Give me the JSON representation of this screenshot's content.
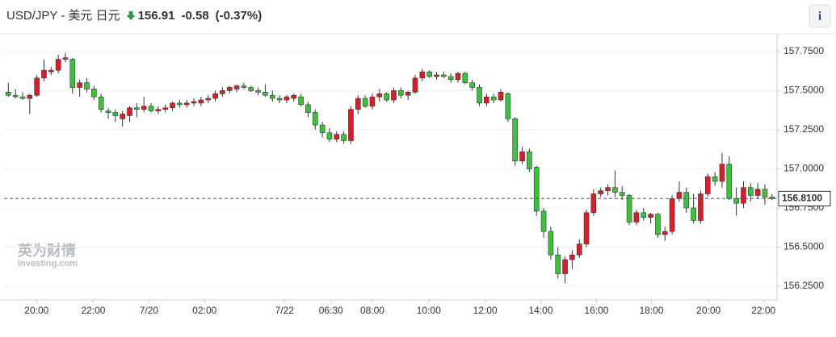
{
  "chart_data": {
    "type": "candlestick",
    "title": "USD/JPY - 美元 日元",
    "price": 156.91,
    "change": -0.58,
    "change_percent": {
      "value": -0.37,
      "label": "(-0.37%)"
    },
    "info_button": "i",
    "watermark": [
      "英为财情",
      "Investing.com"
    ],
    "up_color": "#d91e2a",
    "down_color": "#3cc13c",
    "ylim": [
      156.1625,
      157.8625
    ],
    "yticks": [
      {
        "value": 156.25,
        "label": "156.2500"
      },
      {
        "value": 156.5,
        "label": "156.5000"
      },
      {
        "value": 156.75,
        "label": "156.7500"
      },
      {
        "value": 157,
        "label": "157.0000"
      },
      {
        "value": 157.25,
        "label": "157.2500"
      },
      {
        "value": 157.5,
        "label": "157.5000"
      },
      {
        "value": 157.75,
        "label": "157.7500"
      }
    ],
    "xlim": [
      -0.6,
      107.7
    ],
    "xticks": [
      {
        "value": 3.96,
        "label": "20:00"
      },
      {
        "value": 11.9,
        "label": "22:00"
      },
      {
        "value": 19.7,
        "label": "7/20"
      },
      {
        "value": 27.5,
        "label": "02:00"
      },
      {
        "value": 38.7,
        "label": "7/22"
      },
      {
        "value": 45.2,
        "label": "06:30"
      },
      {
        "value": 51,
        "label": "08:00"
      },
      {
        "value": 58.9,
        "label": "10:00"
      },
      {
        "value": 66.8,
        "label": "12:00"
      },
      {
        "value": 74.6,
        "label": "14:00"
      },
      {
        "value": 82.4,
        "label": "16:00"
      },
      {
        "value": 90.1,
        "label": "18:00"
      },
      {
        "value": 98.1,
        "label": "20:00"
      },
      {
        "value": 105.8,
        "label": "22:00"
      }
    ],
    "last": {
      "value": 156.81,
      "label": "156.8100"
    },
    "candles": [
      [
        157.49,
        157.55,
        157.46,
        157.47
      ],
      [
        157.47,
        157.51,
        157.45,
        157.46
      ],
      [
        157.46,
        157.49,
        157.44,
        157.45
      ],
      [
        157.45,
        157.48,
        157.35,
        157.47
      ],
      [
        157.47,
        157.6,
        157.46,
        157.58
      ],
      [
        157.58,
        157.7,
        157.56,
        157.63
      ],
      [
        157.62,
        157.65,
        157.6,
        157.63
      ],
      [
        157.63,
        157.73,
        157.61,
        157.7
      ],
      [
        157.7,
        157.74,
        157.68,
        157.71
      ],
      [
        157.7,
        157.71,
        157.48,
        157.52
      ],
      [
        157.52,
        157.57,
        157.46,
        157.55
      ],
      [
        157.55,
        157.58,
        157.49,
        157.51
      ],
      [
        157.51,
        157.53,
        157.44,
        157.46
      ],
      [
        157.46,
        157.48,
        157.36,
        157.38
      ],
      [
        157.37,
        157.39,
        157.32,
        157.36
      ],
      [
        157.36,
        157.38,
        157.3,
        157.34
      ],
      [
        157.32,
        157.37,
        157.27,
        157.35
      ],
      [
        157.34,
        157.4,
        157.3,
        157.39
      ],
      [
        157.39,
        157.42,
        157.33,
        157.38
      ],
      [
        157.38,
        157.46,
        157.36,
        157.4
      ],
      [
        157.4,
        157.42,
        157.36,
        157.37
      ],
      [
        157.37,
        157.4,
        157.35,
        157.38
      ],
      [
        157.38,
        157.41,
        157.36,
        157.39
      ],
      [
        157.39,
        157.43,
        157.37,
        157.42
      ],
      [
        157.42,
        157.44,
        157.39,
        157.41
      ],
      [
        157.41,
        157.44,
        157.39,
        157.42
      ],
      [
        157.42,
        157.45,
        157.4,
        157.43
      ],
      [
        157.42,
        157.46,
        157.4,
        157.44
      ],
      [
        157.44,
        157.47,
        157.42,
        157.45
      ],
      [
        157.45,
        157.5,
        157.43,
        157.48
      ],
      [
        157.48,
        157.52,
        157.46,
        157.5
      ],
      [
        157.5,
        157.53,
        157.48,
        157.52
      ],
      [
        157.51,
        157.54,
        157.49,
        157.53
      ],
      [
        157.53,
        157.55,
        157.51,
        157.52
      ],
      [
        157.52,
        157.53,
        157.49,
        157.5
      ],
      [
        157.5,
        157.52,
        157.47,
        157.49
      ],
      [
        157.49,
        157.54,
        157.46,
        157.47
      ],
      [
        157.47,
        157.5,
        157.43,
        157.45
      ],
      [
        157.45,
        157.47,
        157.42,
        157.44
      ],
      [
        157.44,
        157.47,
        157.42,
        157.46
      ],
      [
        157.45,
        157.48,
        157.43,
        157.47
      ],
      [
        157.46,
        157.48,
        157.4,
        157.41
      ],
      [
        157.41,
        157.43,
        157.33,
        157.36
      ],
      [
        157.36,
        157.38,
        157.25,
        157.28
      ],
      [
        157.28,
        157.3,
        157.2,
        157.23
      ],
      [
        157.23,
        157.26,
        157.17,
        157.19
      ],
      [
        157.19,
        157.24,
        157.17,
        157.22
      ],
      [
        157.22,
        157.24,
        157.16,
        157.18
      ],
      [
        157.18,
        157.4,
        157.16,
        157.38
      ],
      [
        157.38,
        157.47,
        157.35,
        157.45
      ],
      [
        157.45,
        157.47,
        157.39,
        157.4
      ],
      [
        157.4,
        157.48,
        157.38,
        157.46
      ],
      [
        157.46,
        157.51,
        157.43,
        157.48
      ],
      [
        157.48,
        157.49,
        157.43,
        157.44
      ],
      [
        157.44,
        157.52,
        157.42,
        157.5
      ],
      [
        157.5,
        157.52,
        157.45,
        157.47
      ],
      [
        157.47,
        157.5,
        157.44,
        157.49
      ],
      [
        157.49,
        157.6,
        157.48,
        157.58
      ],
      [
        157.58,
        157.64,
        157.56,
        157.62
      ],
      [
        157.62,
        157.63,
        157.58,
        157.59
      ],
      [
        157.59,
        157.62,
        157.57,
        157.6
      ],
      [
        157.6,
        157.62,
        157.58,
        157.59
      ],
      [
        157.59,
        157.61,
        157.55,
        157.57
      ],
      [
        157.57,
        157.62,
        157.55,
        157.61
      ],
      [
        157.61,
        157.62,
        157.54,
        157.55
      ],
      [
        157.55,
        157.57,
        157.5,
        157.52
      ],
      [
        157.52,
        157.54,
        157.4,
        157.42
      ],
      [
        157.42,
        157.48,
        157.4,
        157.46
      ],
      [
        157.46,
        157.48,
        157.42,
        157.44
      ],
      [
        157.44,
        157.51,
        157.43,
        157.49
      ],
      [
        157.48,
        157.49,
        157.3,
        157.32
      ],
      [
        157.32,
        157.33,
        157.02,
        157.05
      ],
      [
        157.05,
        157.14,
        157.03,
        157.11
      ],
      [
        157.11,
        157.13,
        156.98,
        157.0
      ],
      [
        157.01,
        157.02,
        156.7,
        156.73
      ],
      [
        156.73,
        156.75,
        156.56,
        156.6
      ],
      [
        156.6,
        156.63,
        156.42,
        156.45
      ],
      [
        156.45,
        156.5,
        156.3,
        156.33
      ],
      [
        156.33,
        156.44,
        156.27,
        156.42
      ],
      [
        156.42,
        156.48,
        156.36,
        156.45
      ],
      [
        156.45,
        156.55,
        156.43,
        156.52
      ],
      [
        156.52,
        156.74,
        156.5,
        156.72
      ],
      [
        156.72,
        156.87,
        156.7,
        156.84
      ],
      [
        156.84,
        156.88,
        156.82,
        156.86
      ],
      [
        156.86,
        156.9,
        156.83,
        156.88
      ],
      [
        156.88,
        156.99,
        156.82,
        156.85
      ],
      [
        156.85,
        156.89,
        156.8,
        156.83
      ],
      [
        156.83,
        156.84,
        156.64,
        156.66
      ],
      [
        156.66,
        156.74,
        156.64,
        156.72
      ],
      [
        156.72,
        156.75,
        156.67,
        156.69
      ],
      [
        156.69,
        156.72,
        156.65,
        156.71
      ],
      [
        156.71,
        156.72,
        156.56,
        156.58
      ],
      [
        156.58,
        156.63,
        156.54,
        156.6
      ],
      [
        156.6,
        156.83,
        156.58,
        156.81
      ],
      [
        156.81,
        156.92,
        156.79,
        156.85
      ],
      [
        156.85,
        156.88,
        156.72,
        156.75
      ],
      [
        156.75,
        156.84,
        156.65,
        156.67
      ],
      [
        156.67,
        156.86,
        156.65,
        156.84
      ],
      [
        156.84,
        156.97,
        156.82,
        156.95
      ],
      [
        156.95,
        156.98,
        156.89,
        156.92
      ],
      [
        156.92,
        157.1,
        156.88,
        157.03
      ],
      [
        157.03,
        157.08,
        156.8,
        156.81
      ],
      [
        156.81,
        156.88,
        156.7,
        156.78
      ],
      [
        156.78,
        156.92,
        156.75,
        156.88
      ],
      [
        156.88,
        156.91,
        156.79,
        156.83
      ],
      [
        156.83,
        156.91,
        156.81,
        156.87
      ],
      [
        156.87,
        156.9,
        156.77,
        156.82
      ],
      [
        156.82,
        156.84,
        156.8,
        156.81
      ]
    ]
  }
}
